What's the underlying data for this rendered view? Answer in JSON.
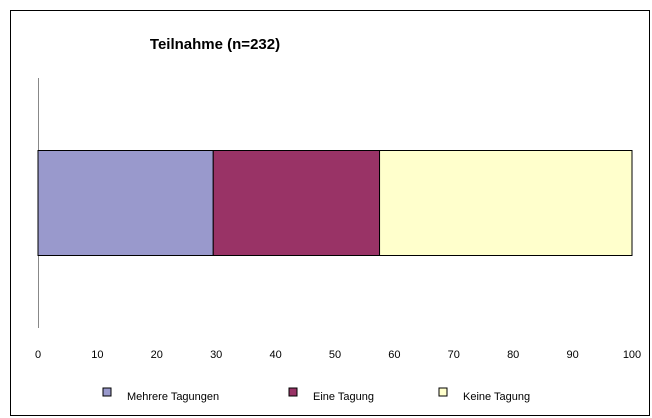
{
  "chart_data": {
    "type": "stacked_barh",
    "title": "Teilnahme (n=232)",
    "categories": [
      null
    ],
    "series": [
      {
        "name": "Mehrere Tagungen",
        "color": "#9999cc",
        "values": [
          29.5
        ]
      },
      {
        "name": "Eine Tagung",
        "color": "#993366",
        "values": [
          28
        ]
      },
      {
        "name": "Keine Tagung",
        "color": "#ffffcc",
        "values": [
          42.5
        ]
      }
    ],
    "xlim": [
      0,
      100
    ],
    "xticks": [
      0,
      10,
      20,
      30,
      40,
      50,
      60,
      70,
      80,
      90,
      100
    ],
    "grid": false,
    "legend": "bottom"
  }
}
